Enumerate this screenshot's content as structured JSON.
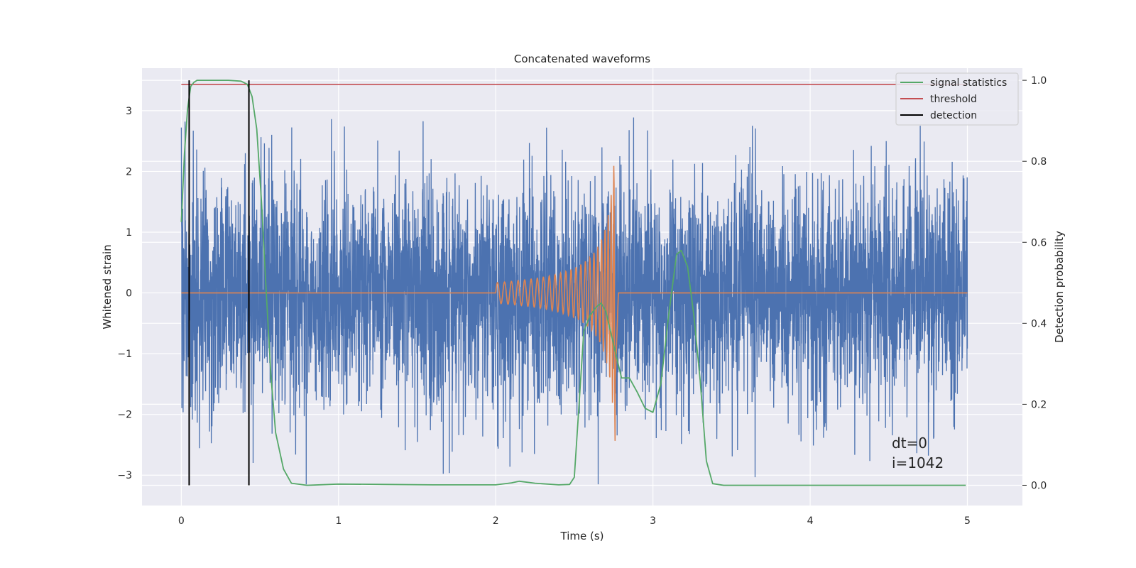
{
  "chart_data": {
    "type": "line",
    "title": "Concatenated waveforms",
    "xlabel": "Time (s)",
    "ylabel_left": "Whitened strain",
    "ylabel_right": "Detection probability",
    "xlim": [
      -0.25,
      5.35
    ],
    "ylim_left": [
      -3.5,
      3.7
    ],
    "ylim_right": [
      -0.05,
      1.03
    ],
    "x_ticks": [
      0,
      1,
      2,
      3,
      4,
      5
    ],
    "x_tick_labels": [
      "0",
      "1",
      "2",
      "3",
      "4",
      "5"
    ],
    "y_left_ticks": [
      -3,
      -2,
      -1,
      0,
      1,
      2,
      3
    ],
    "y_left_tick_labels": [
      "−3",
      "−2",
      "−1",
      "0",
      "1",
      "2",
      "3"
    ],
    "y_right_ticks": [
      0.0,
      0.2,
      0.4,
      0.6,
      0.8,
      1.0
    ],
    "y_right_tick_labels": [
      "0.0",
      "0.2",
      "0.4",
      "0.6",
      "0.8",
      "1.0"
    ],
    "grid": true,
    "legend_position": "top-right",
    "legend": [
      {
        "label": "signal statistics",
        "color": "#55a868"
      },
      {
        "label": "threshold",
        "color": "#c44e52"
      },
      {
        "label": "detection",
        "color": "#000000"
      }
    ],
    "series": [
      {
        "role": "noise strain (left axis)",
        "color": "#4c72b0",
        "x_range": [
          0,
          5
        ],
        "y_range": [
          -3.15,
          3.35
        ]
      },
      {
        "role": "injected chirp (left axis)",
        "color": "#dd8452",
        "chirp_start": 2.0,
        "chirp_peak": 2.76,
        "peak_amplitude": 1.25,
        "min_amplitude": -1.5
      },
      {
        "name": "signal statistics",
        "axis": "right",
        "color": "#55a868",
        "x": [
          0.0,
          0.02,
          0.04,
          0.06,
          0.08,
          0.1,
          0.15,
          0.2,
          0.3,
          0.38,
          0.42,
          0.45,
          0.48,
          0.51,
          0.54,
          0.57,
          0.6,
          0.65,
          0.7,
          0.8,
          1.0,
          1.3,
          1.6,
          2.0,
          2.1,
          2.15,
          2.25,
          2.4,
          2.47,
          2.5,
          2.53,
          2.56,
          2.6,
          2.64,
          2.67,
          2.7,
          2.73,
          2.76,
          2.8,
          2.85,
          2.9,
          2.95,
          3.0,
          3.05,
          3.1,
          3.15,
          3.18,
          3.22,
          3.26,
          3.3,
          3.34,
          3.38,
          3.45,
          3.6,
          4.0,
          4.5,
          4.99
        ],
        "y": [
          0.65,
          0.82,
          0.93,
          0.985,
          0.995,
          1.0,
          1.0,
          1.0,
          1.0,
          0.998,
          0.99,
          0.96,
          0.88,
          0.7,
          0.48,
          0.27,
          0.13,
          0.04,
          0.005,
          0.0,
          0.003,
          0.002,
          0.001,
          0.001,
          0.006,
          0.01,
          0.005,
          0.001,
          0.002,
          0.02,
          0.2,
          0.38,
          0.42,
          0.44,
          0.45,
          0.43,
          0.38,
          0.33,
          0.265,
          0.265,
          0.23,
          0.19,
          0.18,
          0.25,
          0.42,
          0.57,
          0.58,
          0.54,
          0.42,
          0.26,
          0.06,
          0.004,
          0.0,
          0.0,
          0.0,
          0.0,
          0.0
        ]
      },
      {
        "name": "threshold",
        "axis": "right",
        "color": "#c44e52",
        "x": [
          0,
          5
        ],
        "y": [
          0.99,
          0.99
        ]
      },
      {
        "name": "detection",
        "axis": "right",
        "color": "#000000",
        "x_positions": [
          0.05,
          0.43
        ],
        "y": [
          0.0,
          1.0
        ]
      }
    ],
    "annotations": [
      "dt=0",
      "i=1042"
    ]
  }
}
